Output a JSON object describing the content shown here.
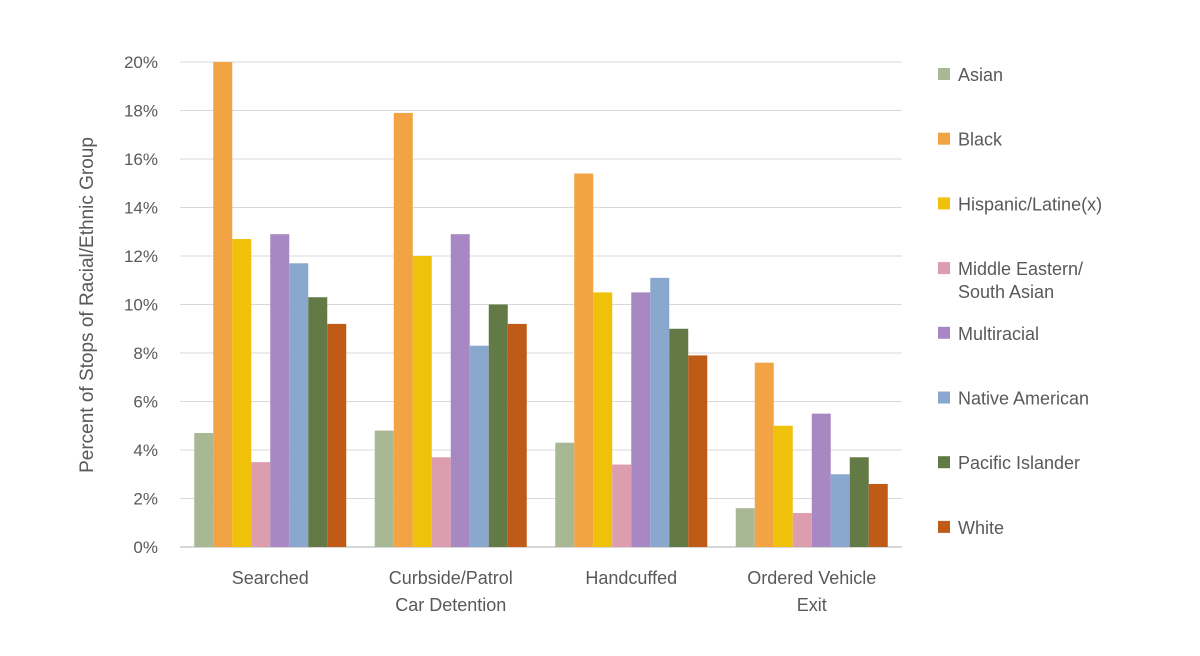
{
  "chart_data": {
    "type": "bar",
    "title": "",
    "xlabel": "",
    "ylabel": "Percent of Stops of  Racial/Ethnic Group",
    "ylim": [
      0,
      20
    ],
    "ytick_step": 2,
    "ytick_suffix": "%",
    "grid": true,
    "legend_position": "right",
    "categories": [
      [
        "Searched"
      ],
      [
        "Curbside/Patrol",
        "Car Detention"
      ],
      [
        "Handcuffed"
      ],
      [
        "Ordered Vehicle",
        "Exit"
      ]
    ],
    "series": [
      {
        "name": [
          "Asian"
        ],
        "color": "#a9b894",
        "values": [
          4.7,
          4.8,
          4.3,
          1.6
        ]
      },
      {
        "name": [
          "Black"
        ],
        "color": "#f2a444",
        "values": [
          20.0,
          17.9,
          15.4,
          7.6
        ]
      },
      {
        "name": [
          "Hispanic/Latine(x)"
        ],
        "color": "#f0c10a",
        "values": [
          12.7,
          12.0,
          10.5,
          5.0
        ]
      },
      {
        "name": [
          "Middle Eastern/",
          "South Asian"
        ],
        "color": "#dc9daf",
        "values": [
          3.5,
          3.7,
          3.4,
          1.4
        ]
      },
      {
        "name": [
          "Multiracial"
        ],
        "color": "#a788c3",
        "values": [
          12.9,
          12.9,
          10.5,
          5.5
        ]
      },
      {
        "name": [
          "Native American"
        ],
        "color": "#8aa7cd",
        "values": [
          11.7,
          8.3,
          11.1,
          3.0
        ]
      },
      {
        "name": [
          "Pacific Islander"
        ],
        "color": "#647a46",
        "values": [
          10.3,
          10.0,
          9.0,
          3.7
        ]
      },
      {
        "name": [
          "White"
        ],
        "color": "#bf5b17",
        "values": [
          9.2,
          9.2,
          7.9,
          2.6
        ]
      }
    ]
  }
}
